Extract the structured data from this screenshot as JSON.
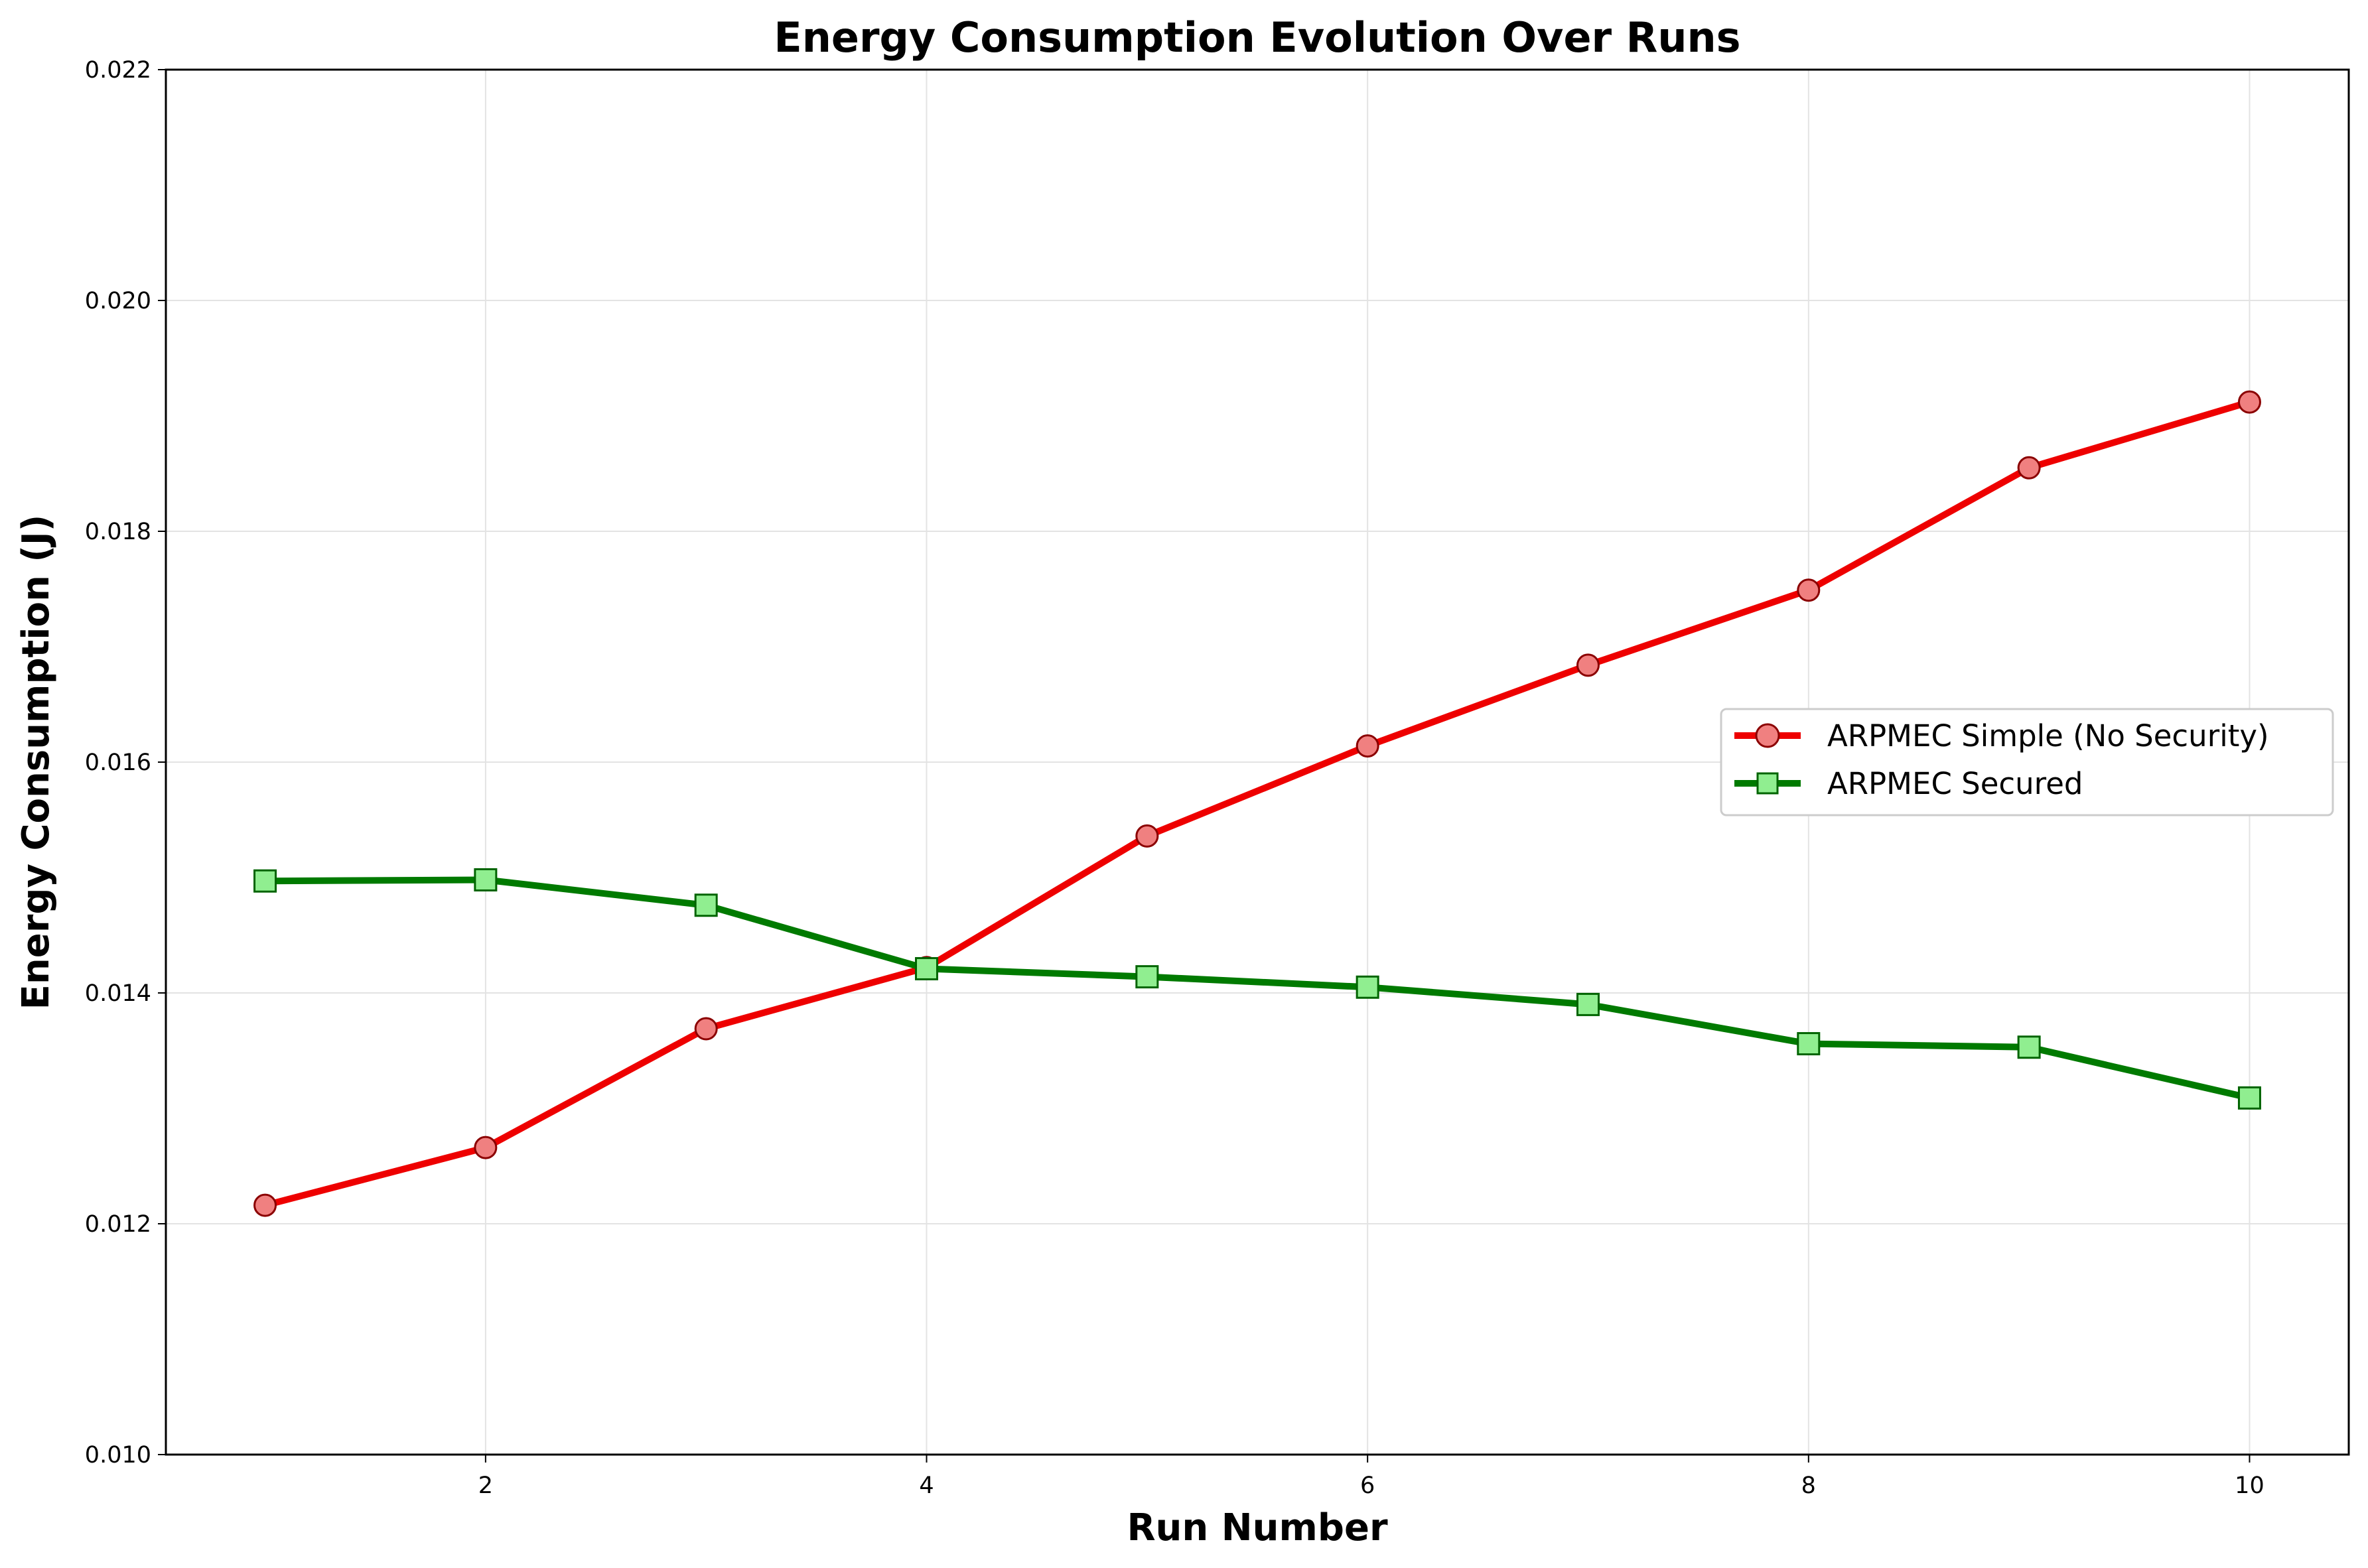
{
  "chart_data": {
    "type": "line",
    "title": "Energy Consumption Evolution Over Runs",
    "xlabel": "Run Number",
    "ylabel": "Energy Consumption (J)",
    "x": [
      1,
      2,
      3,
      4,
      5,
      6,
      7,
      8,
      9,
      10
    ],
    "xlim": [
      0.55,
      10.45
    ],
    "ylim": [
      0.01,
      0.022
    ],
    "xticks": [
      2,
      4,
      6,
      8,
      10
    ],
    "xtick_labels": [
      "2",
      "4",
      "6",
      "8",
      "10"
    ],
    "yticks": [
      0.01,
      0.012,
      0.014,
      0.016,
      0.018,
      0.02,
      0.022
    ],
    "ytick_labels": [
      "0.010",
      "0.012",
      "0.014",
      "0.016",
      "0.018",
      "0.020",
      "0.022"
    ],
    "grid": true,
    "legend_position": "center-right",
    "series": [
      {
        "name": "ARPMEC Simple (No Security)",
        "values": [
          0.01216,
          0.01266,
          0.01369,
          0.01422,
          0.01536,
          0.01614,
          0.01684,
          0.01749,
          0.01855,
          0.01912
        ],
        "line_color": "#ee0000",
        "marker": "circle",
        "marker_fill": "#f08080",
        "marker_edge": "#8b0000"
      },
      {
        "name": "ARPMEC Secured",
        "values": [
          0.01497,
          0.01498,
          0.01476,
          0.01421,
          0.01414,
          0.01405,
          0.0139,
          0.01356,
          0.01353,
          0.01309
        ],
        "line_color": "#007a00",
        "marker": "square",
        "marker_fill": "#90ee90",
        "marker_edge": "#006400"
      }
    ]
  }
}
